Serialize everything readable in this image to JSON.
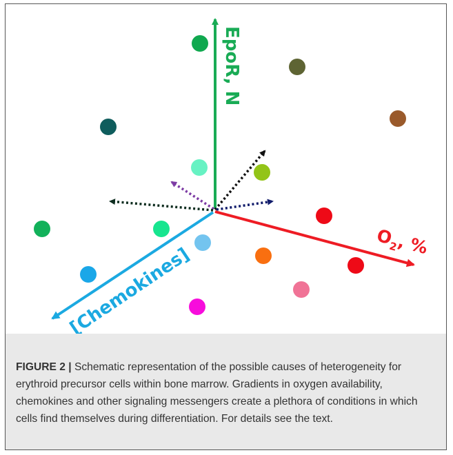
{
  "figure": {
    "axes": {
      "epor": {
        "label": "EpoR, N",
        "color": "#19ab55"
      },
      "oxygen": {
        "label_main": "O",
        "label_sub": "2",
        "label_rest": ", %",
        "color": "#ee1c24"
      },
      "chemokines": {
        "label": "[Chemokines]",
        "color": "#1ba9e1"
      }
    },
    "cells": [
      {
        "name": "cell-green-top",
        "color": "#10a84f"
      },
      {
        "name": "cell-olive",
        "color": "#5e6433"
      },
      {
        "name": "cell-brown",
        "color": "#9a5a2b"
      },
      {
        "name": "cell-teal-dark",
        "color": "#0f5d5d"
      },
      {
        "name": "cell-mint",
        "color": "#67f2c3"
      },
      {
        "name": "cell-lime",
        "color": "#93c418"
      },
      {
        "name": "cell-green-left",
        "color": "#12b15a"
      },
      {
        "name": "cell-aqua",
        "color": "#17e58f"
      },
      {
        "name": "cell-light-blue",
        "color": "#73c4ef"
      },
      {
        "name": "cell-red-upper",
        "color": "#ee0a17"
      },
      {
        "name": "cell-orange",
        "color": "#f96f10"
      },
      {
        "name": "cell-red-lower",
        "color": "#ee0a17"
      },
      {
        "name": "cell-blue",
        "color": "#1aa7e8"
      },
      {
        "name": "cell-pink",
        "color": "#f07396"
      },
      {
        "name": "cell-magenta",
        "color": "#f70cdc"
      }
    ],
    "gradient_arrows": [
      {
        "name": "black-gradient-arrow",
        "color": "#111111"
      },
      {
        "name": "purple-gradient-arrow",
        "color": "#7d3ca4"
      },
      {
        "name": "dark-green-gradient-arrow",
        "color": "#0e2d1f"
      },
      {
        "name": "navy-gradient-arrow",
        "color": "#111c6b"
      }
    ]
  },
  "caption": {
    "label": "FIGURE 2 |",
    "text": " Schematic representation of the possible causes of heterogeneity for erythroid precursor cells within bone marrow. Gradients in oxygen availability, chemokines and other signaling messengers create a plethora of conditions in which cells find themselves during differentiation. For details see the text."
  }
}
